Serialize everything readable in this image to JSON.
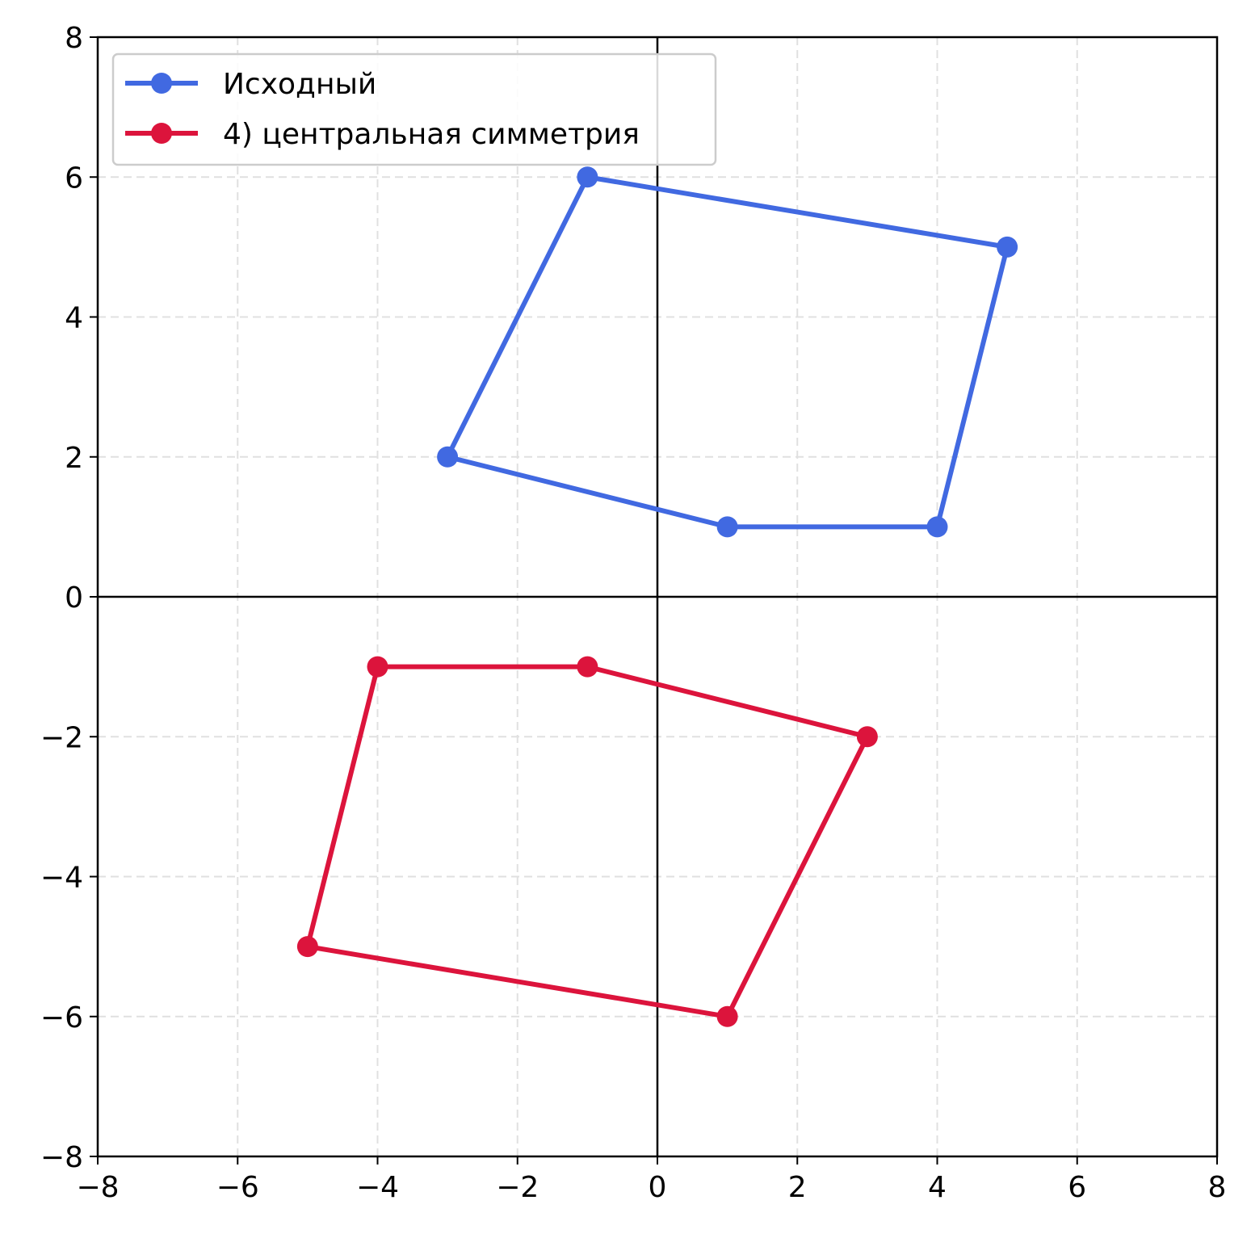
{
  "chart_data": {
    "type": "line",
    "title": "",
    "xlabel": "",
    "ylabel": "",
    "xlim": [
      -8,
      8
    ],
    "ylim": [
      -8,
      8
    ],
    "xticks": [
      -8,
      -6,
      -4,
      -2,
      0,
      2,
      4,
      6,
      8
    ],
    "yticks": [
      -8,
      -6,
      -4,
      -2,
      0,
      2,
      4,
      6,
      8
    ],
    "xtick_labels": [
      "−8",
      "−6",
      "−4",
      "−2",
      "0",
      "2",
      "4",
      "6",
      "8"
    ],
    "ytick_labels": [
      "−8",
      "−6",
      "−4",
      "−2",
      "0",
      "2",
      "4",
      "6",
      "8"
    ],
    "grid": true,
    "grid_style": "dashed",
    "axes_lines_through_origin": true,
    "legend_position": "upper-left",
    "series": [
      {
        "name": "Исходный",
        "color": "#4169E1",
        "closed": true,
        "marker": "circle",
        "points": [
          [
            -3,
            2
          ],
          [
            -1,
            6
          ],
          [
            5,
            5
          ],
          [
            4,
            1
          ],
          [
            1,
            1
          ]
        ]
      },
      {
        "name": "4) центральная симметрия",
        "color": "#DC143C",
        "closed": true,
        "marker": "circle",
        "points": [
          [
            3,
            -2
          ],
          [
            1,
            -6
          ],
          [
            -5,
            -5
          ],
          [
            -4,
            -1
          ],
          [
            -1,
            -1
          ]
        ]
      }
    ]
  }
}
